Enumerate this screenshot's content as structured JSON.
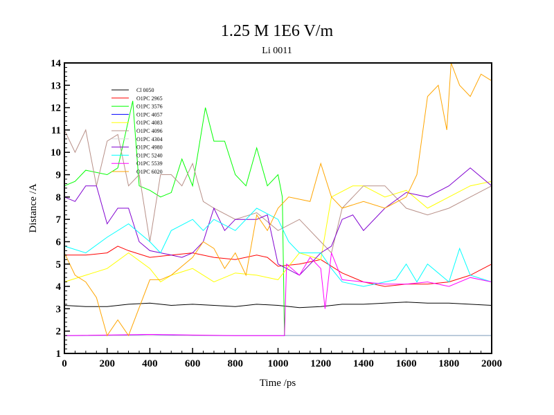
{
  "chart_data": {
    "type": "line",
    "title": "1.25 M 1E6 V/m",
    "subtitle": "Li 0011",
    "xlabel": "Time /ps",
    "ylabel": "Distance /A",
    "xlim": [
      0,
      2000
    ],
    "ylim": [
      1,
      14
    ],
    "xticks": [
      0,
      200,
      400,
      600,
      800,
      1000,
      1200,
      1400,
      1600,
      1800,
      2000
    ],
    "yticks": [
      1,
      2,
      3,
      4,
      5,
      6,
      7,
      8,
      9,
      10,
      11,
      12,
      13,
      14
    ],
    "grid": false,
    "legend_position": "top-left",
    "series": [
      {
        "name": "Cl 0050",
        "color": "#000000",
        "x": [
          0,
          100,
          200,
          300,
          400,
          500,
          600,
          700,
          800,
          900,
          1000,
          1100,
          1200,
          1300,
          1400,
          1500,
          1600,
          1700,
          1800,
          1900,
          2000
        ],
        "y": [
          3.15,
          3.1,
          3.1,
          3.2,
          3.25,
          3.15,
          3.2,
          3.15,
          3.1,
          3.2,
          3.15,
          3.05,
          3.1,
          3.2,
          3.2,
          3.25,
          3.3,
          3.25,
          3.25,
          3.2,
          3.15
        ]
      },
      {
        "name": "O1PC 2965",
        "color": "#ff0000",
        "x": [
          0,
          100,
          200,
          250,
          300,
          400,
          500,
          600,
          700,
          800,
          900,
          950,
          1000,
          1100,
          1200,
          1300,
          1400,
          1500,
          1600,
          1700,
          1800,
          1900,
          2000
        ],
        "y": [
          5.4,
          5.4,
          5.5,
          5.8,
          5.6,
          5.3,
          5.4,
          5.5,
          5.3,
          5.2,
          5.4,
          5.3,
          4.9,
          5.0,
          5.2,
          4.6,
          4.2,
          4.0,
          4.1,
          4.1,
          4.2,
          4.5,
          5.0
        ]
      },
      {
        "name": "O1PC 3576",
        "color": "#00ff00",
        "x": [
          0,
          50,
          100,
          200,
          250,
          320,
          350,
          400,
          450,
          500,
          550,
          600,
          660,
          700,
          750,
          800,
          850,
          900,
          950,
          1000,
          1020,
          1030,
          1100,
          1200,
          1400,
          1600,
          1800,
          2000
        ],
        "y": [
          8.5,
          8.7,
          9.2,
          9.0,
          9.3,
          12.3,
          8.5,
          8.3,
          8.0,
          8.2,
          9.7,
          8.5,
          12.0,
          10.5,
          10.5,
          9.0,
          8.5,
          10.2,
          8.5,
          9.0,
          8.0,
          1.8,
          1.8,
          1.8,
          1.8,
          1.8,
          1.8,
          1.8
        ]
      },
      {
        "name": "O1PC 4057",
        "color": "#0000ff",
        "x": [
          0,
          200,
          400,
          600,
          800,
          1000,
          1200,
          1400,
          1600,
          1800,
          2000
        ],
        "y": [
          1.8,
          1.8,
          1.85,
          1.8,
          1.8,
          1.8,
          1.8,
          1.8,
          1.8,
          1.8,
          1.8
        ]
      },
      {
        "name": "O1PC 4083",
        "color": "#ffff00",
        "x": [
          0,
          100,
          200,
          300,
          400,
          450,
          500,
          600,
          700,
          800,
          900,
          1000,
          1100,
          1200,
          1250,
          1350,
          1400,
          1500,
          1600,
          1700,
          1800,
          1900,
          2000
        ],
        "y": [
          4.2,
          4.5,
          4.8,
          5.5,
          4.8,
          4.2,
          4.5,
          4.8,
          4.2,
          4.6,
          4.5,
          4.3,
          5.5,
          5.2,
          8.0,
          8.5,
          8.5,
          8.0,
          8.3,
          7.5,
          8.0,
          8.5,
          8.7
        ]
      },
      {
        "name": "O1PC 4096",
        "color": "#b89088",
        "x": [
          0,
          50,
          100,
          150,
          200,
          250,
          300,
          350,
          400,
          450,
          500,
          550,
          600,
          650,
          700,
          800,
          900,
          1000,
          1100,
          1200,
          1250,
          1300,
          1400,
          1500,
          1600,
          1700,
          1800,
          1900,
          2000
        ],
        "y": [
          11.0,
          10.0,
          11.0,
          8.5,
          10.5,
          10.8,
          8.5,
          9.0,
          6.0,
          9.0,
          9.0,
          8.5,
          9.5,
          7.8,
          7.5,
          7.0,
          7.3,
          6.5,
          7.0,
          6.0,
          5.5,
          7.5,
          8.5,
          8.5,
          7.5,
          7.2,
          7.5,
          8.0,
          8.5
        ]
      },
      {
        "name": "O1PC 4304",
        "color": "#d8d8d8",
        "x": [
          0,
          500,
          1000,
          1500,
          2000
        ],
        "y": [
          1.8,
          1.8,
          1.8,
          1.8,
          1.8
        ]
      },
      {
        "name": "O1PC 4980",
        "color": "#8000d0",
        "x": [
          0,
          50,
          100,
          150,
          200,
          250,
          300,
          350,
          400,
          500,
          550,
          600,
          650,
          700,
          750,
          800,
          900,
          950,
          1000,
          1100,
          1150,
          1200,
          1250,
          1300,
          1350,
          1400,
          1500,
          1600,
          1700,
          1800,
          1900,
          2000
        ],
        "y": [
          8.0,
          7.8,
          8.5,
          8.5,
          6.8,
          7.5,
          7.5,
          6.0,
          5.6,
          5.4,
          5.3,
          5.5,
          6.0,
          7.5,
          6.5,
          7.0,
          7.0,
          7.2,
          5.0,
          4.5,
          5.0,
          5.5,
          5.8,
          7.0,
          7.2,
          6.5,
          7.5,
          8.2,
          8.0,
          8.5,
          9.3,
          8.5
        ]
      },
      {
        "name": "O1PC 5240",
        "color": "#00ffff",
        "x": [
          0,
          100,
          200,
          300,
          400,
          450,
          500,
          600,
          650,
          700,
          800,
          900,
          1000,
          1050,
          1100,
          1200,
          1250,
          1300,
          1400,
          1500,
          1550,
          1600,
          1650,
          1700,
          1800,
          1850,
          1900,
          2000
        ],
        "y": [
          5.8,
          5.5,
          6.2,
          6.8,
          6.0,
          5.5,
          6.5,
          7.0,
          6.5,
          7.0,
          6.5,
          7.5,
          7.0,
          6.0,
          5.5,
          5.5,
          4.8,
          4.2,
          4.0,
          4.2,
          4.3,
          5.0,
          4.2,
          5.0,
          4.2,
          5.7,
          4.5,
          4.2
        ]
      },
      {
        "name": "O1PC 5539",
        "color": "#ff00ff",
        "x": [
          0,
          400,
          800,
          1030,
          1040,
          1100,
          1150,
          1200,
          1220,
          1250,
          1300,
          1400,
          1500,
          1600,
          1700,
          1800,
          1900,
          2000
        ],
        "y": [
          1.8,
          1.85,
          1.8,
          1.8,
          5.0,
          4.5,
          5.3,
          4.8,
          3.0,
          5.5,
          4.3,
          4.2,
          4.1,
          4.1,
          4.2,
          4.0,
          4.4,
          4.2
        ]
      },
      {
        "name": "O1PC 6020",
        "color": "#ffa500",
        "x": [
          0,
          50,
          100,
          150,
          200,
          250,
          300,
          400,
          450,
          500,
          600,
          650,
          700,
          750,
          800,
          850,
          900,
          950,
          1000,
          1050,
          1150,
          1200,
          1250,
          1300,
          1400,
          1500,
          1600,
          1650,
          1700,
          1750,
          1790,
          1810,
          1850,
          1900,
          1950,
          2000
        ],
        "y": [
          5.5,
          4.5,
          4.2,
          3.5,
          1.8,
          2.5,
          1.8,
          4.3,
          4.3,
          4.5,
          5.3,
          6.0,
          5.7,
          4.8,
          5.5,
          4.5,
          7.2,
          6.5,
          7.5,
          8.0,
          7.8,
          9.5,
          8.0,
          7.5,
          7.8,
          7.5,
          8.0,
          9.0,
          12.5,
          13.0,
          11.0,
          14.0,
          13.0,
          12.5,
          13.5,
          13.2
        ]
      }
    ]
  }
}
